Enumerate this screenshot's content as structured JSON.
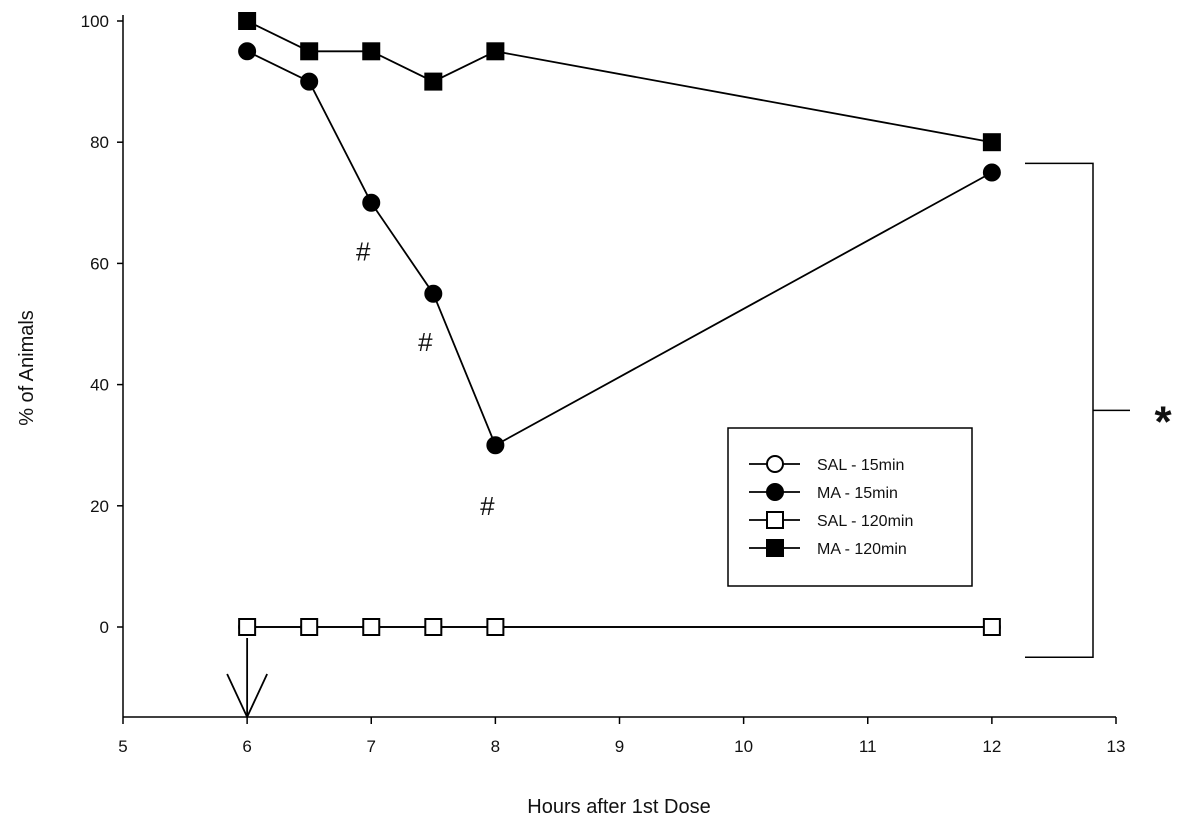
{
  "chart_data": {
    "type": "line",
    "xlabel": "Hours after 1st Dose",
    "ylabel": "% of Animals",
    "xlim": [
      5,
      13
    ],
    "ylim": [
      -15,
      100
    ],
    "xticks": [
      "5",
      "6",
      "7",
      "8",
      "9",
      "10",
      "11",
      "12",
      "13"
    ],
    "yticks": [
      "0",
      "20",
      "40",
      "60",
      "80",
      "100"
    ],
    "x": [
      6,
      6.5,
      7,
      7.5,
      8,
      12
    ],
    "series": [
      {
        "name": "SAL - 15min",
        "marker": "circle-open",
        "values": [
          0,
          0,
          0,
          0,
          0,
          0
        ]
      },
      {
        "name": "MA - 15min",
        "marker": "circle-filled",
        "values": [
          95,
          90,
          70,
          55,
          30,
          75
        ]
      },
      {
        "name": "SAL - 120min",
        "marker": "square-open",
        "values": [
          0,
          0,
          0,
          0,
          0,
          0
        ]
      },
      {
        "name": "MA - 120min",
        "marker": "square-filled",
        "values": [
          100,
          95,
          95,
          90,
          95,
          80
        ]
      }
    ],
    "annotations": [
      {
        "text": "#",
        "x": 7,
        "y": 62
      },
      {
        "text": "#",
        "x": 7.5,
        "y": 47
      },
      {
        "text": "#",
        "x": 8,
        "y": 20
      },
      {
        "text": "*",
        "target": "bracket",
        "y_range": [
          -5,
          76.5
        ]
      }
    ],
    "arrow": {
      "x": 6,
      "direction": "down"
    },
    "legend_placement": "lower-right",
    "grid": false
  }
}
